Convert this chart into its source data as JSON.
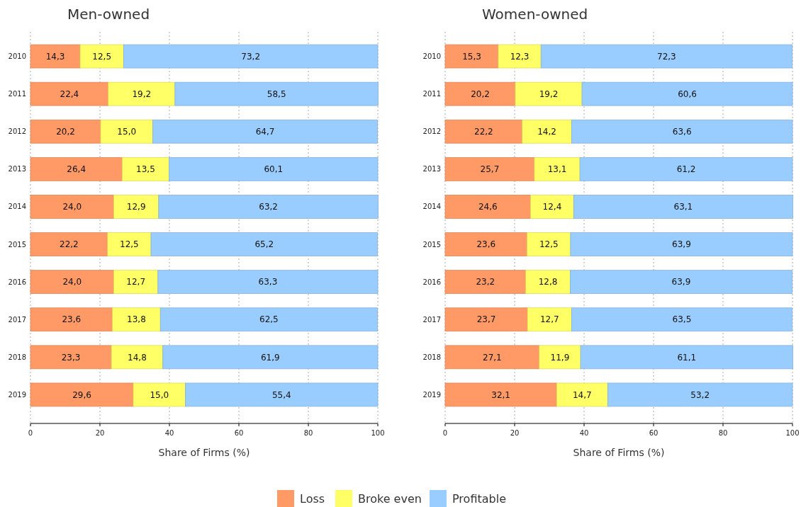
{
  "chart_data": [
    {
      "type": "bar",
      "title": "Men-owned",
      "xlabel": "Share of Firms (%)",
      "orientation": "horizontal",
      "stacked": true,
      "categories": [
        "2010",
        "2011",
        "2012",
        "2013",
        "2014",
        "2015",
        "2016",
        "2017",
        "2018",
        "2019"
      ],
      "xlim": [
        0,
        100
      ],
      "xticks": [
        0,
        20,
        40,
        60,
        80,
        100
      ],
      "grid": "x",
      "legend": "bottom",
      "series": [
        {
          "name": "Loss",
          "color": "#ff9966",
          "values": [
            14.3,
            22.4,
            20.2,
            26.4,
            24.0,
            22.2,
            24.0,
            23.6,
            23.3,
            29.6
          ],
          "value_labels": [
            "14,3",
            "22,4",
            "20,2",
            "26,4",
            "24,0",
            "22,2",
            "24,0",
            "23,6",
            "23,3",
            "29,6"
          ]
        },
        {
          "name": "Broke even",
          "color": "#ffff66",
          "values": [
            12.5,
            19.2,
            15.0,
            13.5,
            12.9,
            12.5,
            12.7,
            13.8,
            14.8,
            15.0
          ],
          "value_labels": [
            "12,5",
            "19,2",
            "15,0",
            "13,5",
            "12,9",
            "12,5",
            "12,7",
            "13,8",
            "14,8",
            "15,0"
          ]
        },
        {
          "name": "Profitable",
          "color": "#99ccff",
          "values": [
            73.2,
            58.5,
            64.7,
            60.1,
            63.2,
            65.2,
            63.3,
            62.5,
            61.9,
            55.4
          ],
          "value_labels": [
            "73,2",
            "58,5",
            "64,7",
            "60,1",
            "63,2",
            "65,2",
            "63,3",
            "62,5",
            "61,9",
            "55,4"
          ]
        }
      ]
    },
    {
      "type": "bar",
      "title": "Women-owned",
      "xlabel": "Share of Firms (%)",
      "orientation": "horizontal",
      "stacked": true,
      "categories": [
        "2010",
        "2011",
        "2012",
        "2013",
        "2014",
        "2015",
        "2016",
        "2017",
        "2018",
        "2019"
      ],
      "xlim": [
        0,
        100
      ],
      "xticks": [
        0,
        20,
        40,
        60,
        80,
        100
      ],
      "grid": "x",
      "series": [
        {
          "color": "#ff9966",
          "values": [
            15.3,
            20.2,
            22.2,
            25.7,
            24.6,
            23.6,
            23.2,
            23.7,
            27.1,
            32.1
          ],
          "value_labels": [
            "15,3",
            "20,2",
            "22,2",
            "25,7",
            "24,6",
            "23,6",
            "23,2",
            "23,7",
            "27,1",
            "32,1"
          ]
        },
        {
          "color": "#ffff66",
          "values": [
            12.3,
            19.2,
            14.2,
            13.1,
            12.4,
            12.5,
            12.8,
            12.7,
            11.9,
            14.7
          ],
          "value_labels": [
            "12,3",
            "19,2",
            "14,2",
            "13,1",
            "12,4",
            "12,5",
            "12,8",
            "12,7",
            "11,9",
            "14,7"
          ]
        },
        {
          "color": "#99ccff",
          "values": [
            72.3,
            60.6,
            63.6,
            61.2,
            63.1,
            63.9,
            63.9,
            63.5,
            61.1,
            53.2
          ],
          "value_labels": [
            "72,3",
            "60,6",
            "63,6",
            "61,2",
            "63,1",
            "63,9",
            "63,9",
            "63,5",
            "61,1",
            "53,2"
          ]
        }
      ]
    }
  ]
}
